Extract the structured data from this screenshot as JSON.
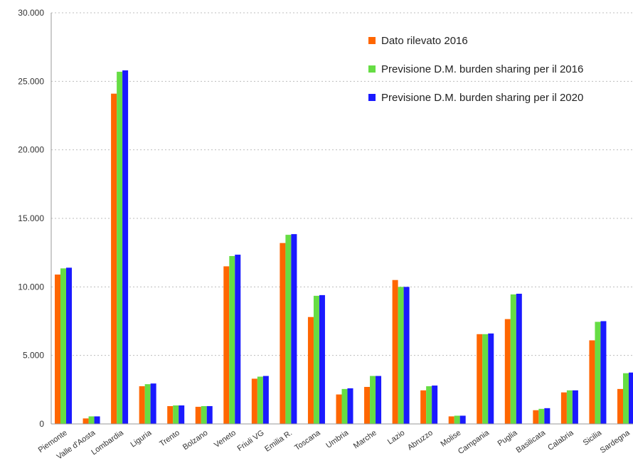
{
  "chart_data": {
    "type": "bar",
    "title": "",
    "xlabel": "",
    "ylabel": "",
    "ylim": [
      0,
      30000
    ],
    "yticks": [
      0,
      5000,
      10000,
      15000,
      20000,
      25000,
      30000
    ],
    "ytick_labels": [
      "0",
      "5.000",
      "10.000",
      "15.000",
      "20.000",
      "25.000",
      "30.000"
    ],
    "grid": "horizontal dashed",
    "legend_position": "top-right",
    "categories": [
      "Piemonte",
      "Valle d'Aosta",
      "Lombardia",
      "Liguria",
      "Trento",
      "Bolzano",
      "Veneto",
      "Friuli VG",
      "Emilia R.",
      "Toscana",
      "Umbria",
      "Marche",
      "Lazio",
      "Abruzzo",
      "Molise",
      "Campania",
      "Puglia",
      "Basilicata",
      "Calabria",
      "Sicilia",
      "Sardegna"
    ],
    "series": [
      {
        "name": "Dato rilevato 2016",
        "color": "#ff6600",
        "values": [
          10900,
          400,
          24100,
          2750,
          1300,
          1250,
          11500,
          3300,
          13200,
          7800,
          2150,
          2700,
          10500,
          2450,
          550,
          6550,
          7650,
          1000,
          2300,
          6100,
          2550
        ]
      },
      {
        "name": "Previsione D.M. burden sharing per il 2016",
        "color": "#66dd44",
        "values": [
          11350,
          550,
          25700,
          2900,
          1350,
          1300,
          12250,
          3450,
          13800,
          9350,
          2550,
          3500,
          10000,
          2750,
          600,
          6550,
          9450,
          1100,
          2450,
          7450,
          3700
        ]
      },
      {
        "name": "Previsione D.M. burden sharing per il 2020",
        "color": "#1a1aff",
        "values": [
          11400,
          550,
          25800,
          2950,
          1350,
          1300,
          12350,
          3500,
          13850,
          9400,
          2600,
          3500,
          10000,
          2800,
          600,
          6600,
          9500,
          1150,
          2450,
          7500,
          3750
        ]
      }
    ]
  }
}
